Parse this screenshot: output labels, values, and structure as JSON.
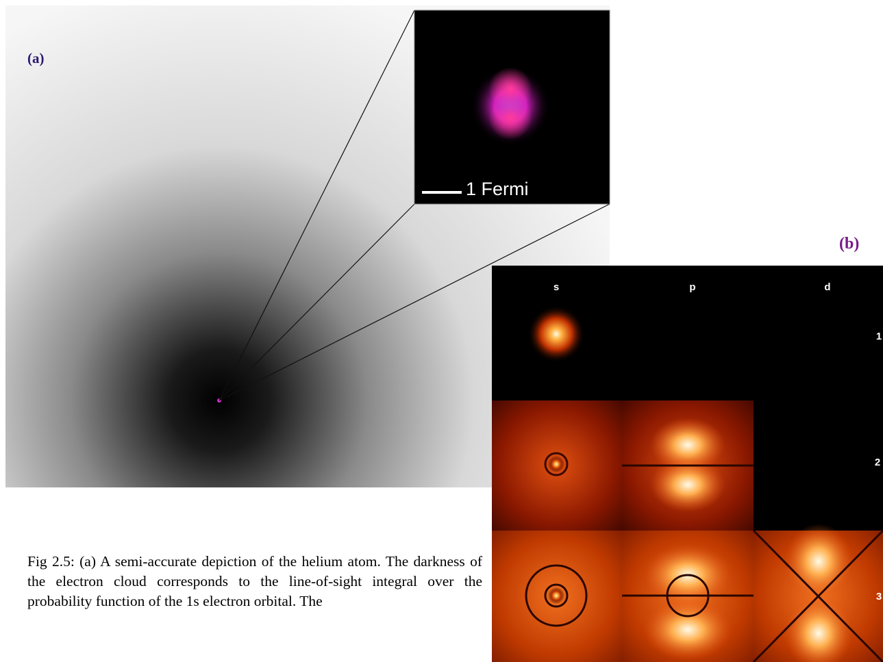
{
  "figure": {
    "panel_a": {
      "label": "(a)",
      "scale_label": "1 Fermi"
    },
    "panel_b": {
      "label": "(b)",
      "columns": [
        "s",
        "p",
        "d"
      ],
      "rows": [
        "1",
        "2",
        "3"
      ]
    },
    "caption": "Fig 2.5: (a) A semi-accurate depiction of the helium atom. The darkness of the electron cloud corresponds to the line-of-sight integral over the probability function of the 1s electron orbital. The"
  }
}
